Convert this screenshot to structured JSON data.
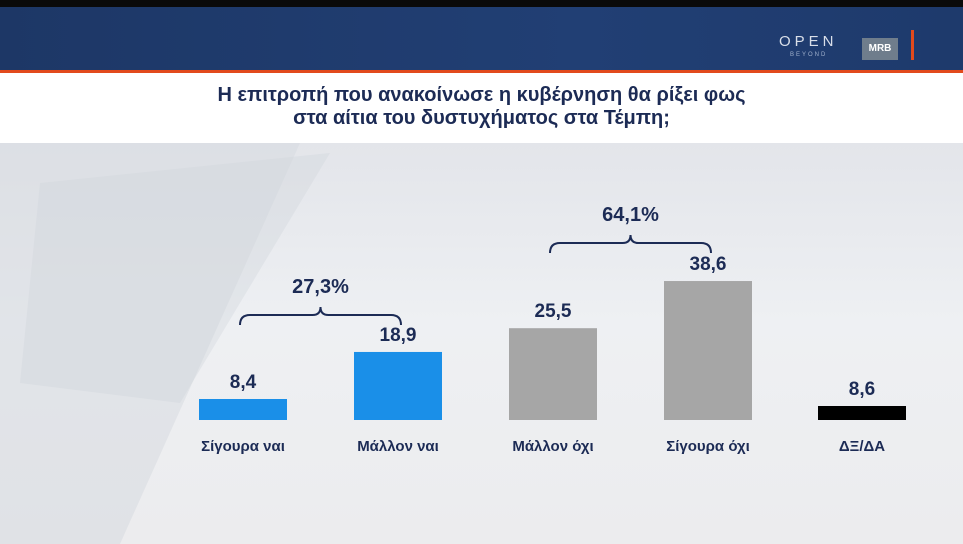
{
  "broadcaster": {
    "logo_main": "OPEN",
    "logo_sub": "BEYOND",
    "pollster": "MRB"
  },
  "colors": {
    "header": "#1f3a6b",
    "accent": "#e24a1c",
    "yes_bars": "#1a8fe8",
    "no_bars": "#a6a6a6",
    "dk_bar": "#000000",
    "text": "#1c2b55"
  },
  "title": {
    "line1": "Η επιτροπή που ανακοίνωσε η κυβέρνηση θα ρίξει φως",
    "line2": "στα αίτια του δυστυχήματος στα Τέμπη;"
  },
  "chart_data": {
    "type": "bar",
    "categories": [
      "Σίγουρα ναι",
      "Μάλλον ναι",
      "Μάλλον όχι",
      "Σίγουρα όχι",
      "ΔΞ/ΔΑ"
    ],
    "values": [
      8.4,
      18.9,
      25.5,
      38.6,
      8.6
    ],
    "value_labels": [
      "8,4",
      "18,9",
      "25,5",
      "38,6",
      "8,6"
    ],
    "bar_colors": [
      "#1a8fe8",
      "#1a8fe8",
      "#a6a6a6",
      "#a6a6a6",
      "#000000"
    ],
    "groups": [
      {
        "label": "27,3%",
        "from": 0,
        "to": 1
      },
      {
        "label": "64,1%",
        "from": 2,
        "to": 3
      }
    ],
    "ylim": [
      0,
      40
    ],
    "grid": false
  }
}
